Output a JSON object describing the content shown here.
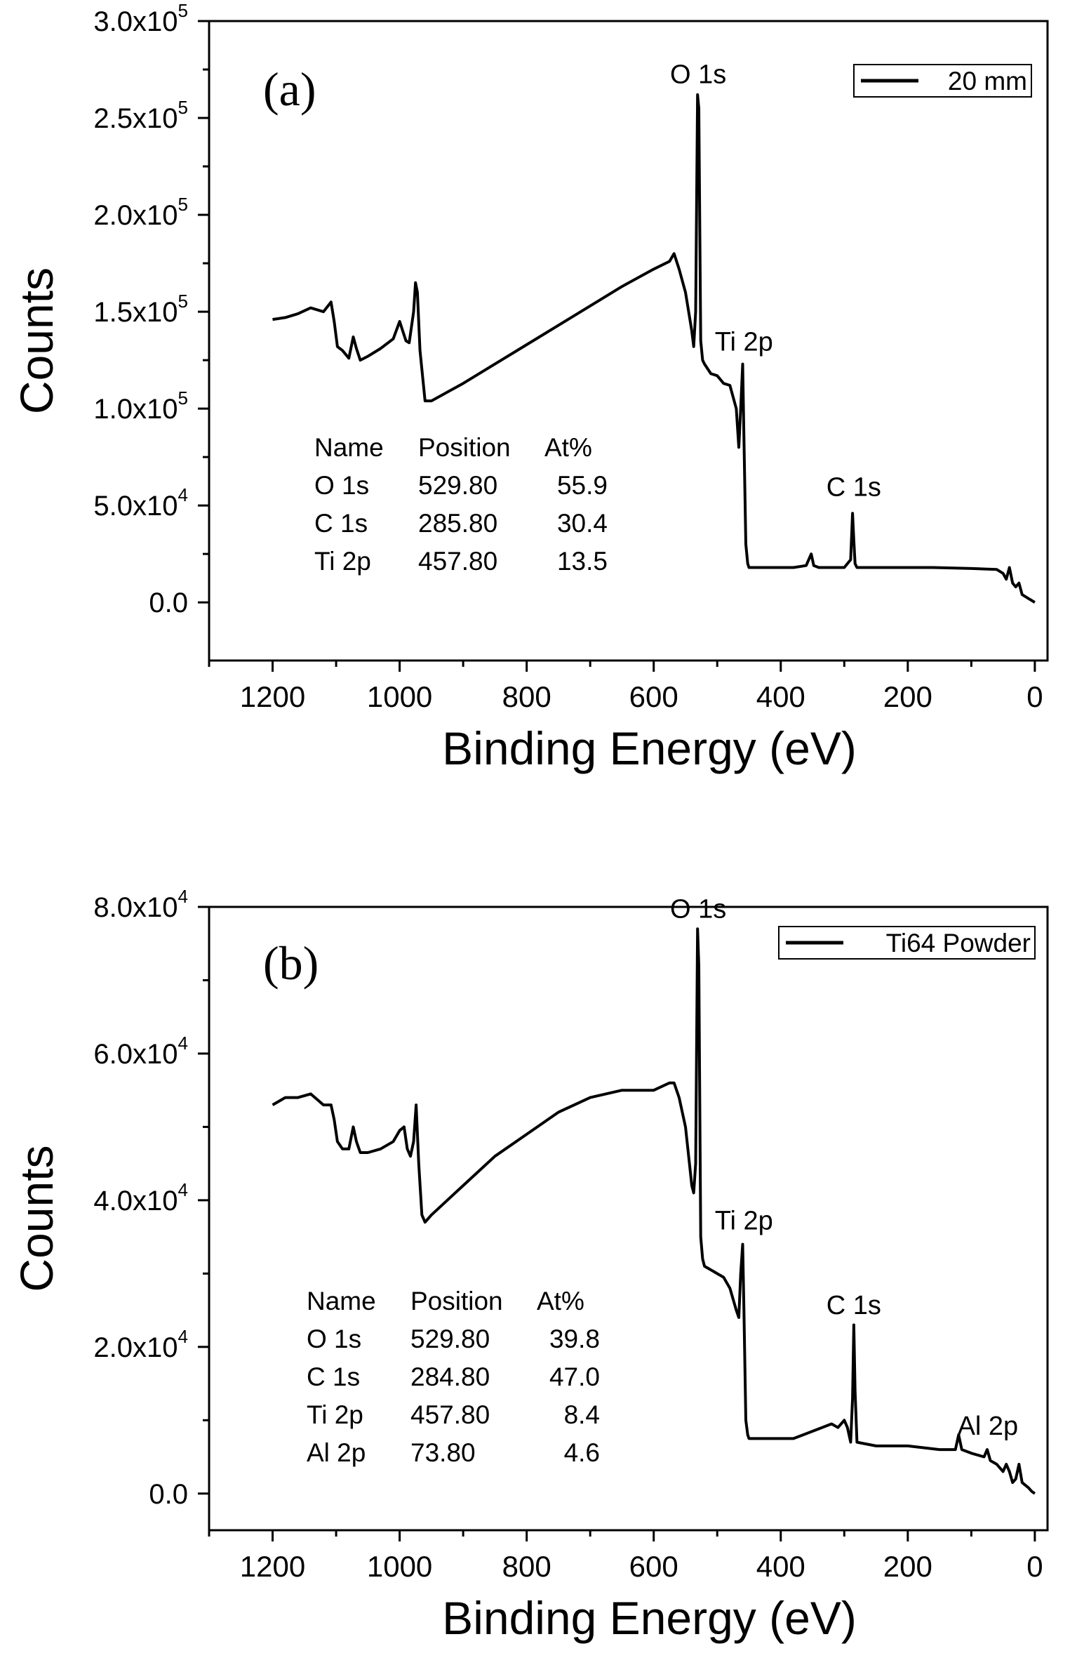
{
  "chart_data": [
    {
      "type": "line",
      "panel_label": "(a)",
      "xlabel": "Binding Energy (eV)",
      "ylabel": "Counts",
      "xlim": [
        1300,
        -20
      ],
      "ylim": [
        -30000,
        300000
      ],
      "x_ticks": [
        1200,
        1000,
        800,
        600,
        400,
        200,
        0
      ],
      "x_tick_labels": [
        "1200",
        "1000",
        "800",
        "600",
        "400",
        "200",
        "0"
      ],
      "y_ticks": [
        {
          "value": 300000,
          "mantissa": "3.0x10",
          "exp": "5"
        },
        {
          "value": 250000,
          "mantissa": "2.5x10",
          "exp": "5"
        },
        {
          "value": 200000,
          "mantissa": "2.0x10",
          "exp": "5"
        },
        {
          "value": 150000,
          "mantissa": "1.5x10",
          "exp": "5"
        },
        {
          "value": 100000,
          "mantissa": "1.0x10",
          "exp": "5"
        },
        {
          "value": 50000,
          "mantissa": "5.0x10",
          "exp": "4"
        },
        {
          "value": 0,
          "mantissa": "0.0",
          "exp": ""
        }
      ],
      "legend": {
        "label": "20 mm",
        "position": "top-right"
      },
      "series": [
        {
          "name": "20 mm",
          "x": [
            1200,
            1180,
            1160,
            1140,
            1120,
            1108,
            1103,
            1098,
            1090,
            1080,
            1073,
            1068,
            1062,
            1050,
            1030,
            1010,
            1000,
            995,
            990,
            985,
            978,
            975,
            972,
            968,
            960,
            950,
            900,
            850,
            800,
            750,
            700,
            650,
            600,
            575,
            568,
            560,
            550,
            545,
            540,
            537,
            534,
            531,
            529,
            526,
            523,
            520,
            510,
            500,
            490,
            480,
            470,
            466,
            463,
            460,
            458,
            455,
            452,
            450,
            440,
            420,
            400,
            380,
            360,
            352,
            348,
            340,
            320,
            300,
            290,
            287,
            285,
            283,
            280,
            250,
            200,
            160,
            100,
            60,
            50,
            45,
            40,
            35,
            30,
            25,
            20,
            10,
            5,
            0
          ],
          "y": [
            146000,
            147000,
            149000,
            152000,
            150000,
            155000,
            145000,
            132000,
            130000,
            126000,
            137000,
            131000,
            125000,
            127000,
            131000,
            136000,
            145000,
            140000,
            135000,
            134000,
            150000,
            165000,
            160000,
            130000,
            104000,
            104000,
            113000,
            123000,
            133000,
            143000,
            153000,
            163000,
            172000,
            176000,
            180000,
            172000,
            160000,
            150000,
            140000,
            132000,
            150000,
            262000,
            255000,
            135000,
            125000,
            123000,
            118000,
            117000,
            113000,
            112000,
            100000,
            80000,
            100000,
            123000,
            85000,
            30000,
            20000,
            18000,
            18000,
            18000,
            18000,
            18000,
            19000,
            25000,
            19000,
            18000,
            18000,
            18000,
            22000,
            46000,
            32000,
            20000,
            18000,
            18000,
            18000,
            18000,
            17500,
            17000,
            15000,
            12000,
            18000,
            10000,
            8000,
            10000,
            4000,
            2000,
            1000,
            0
          ]
        }
      ],
      "annotations": [
        {
          "text": "O 1s",
          "x": 530,
          "y": 268000
        },
        {
          "text": "Ti 2p",
          "x": 458,
          "y": 130000
        },
        {
          "text": "C 1s",
          "x": 285,
          "y": 55000
        }
      ],
      "table": {
        "headers": [
          "Name",
          "Position",
          "At%"
        ],
        "rows": [
          [
            "O 1s",
            "529.80",
            "55.9"
          ],
          [
            "C 1s",
            "285.80",
            "30.4"
          ],
          [
            "Ti 2p",
            "457.80",
            "13.5"
          ]
        ]
      }
    },
    {
      "type": "line",
      "panel_label": "(b)",
      "xlabel": "Binding Energy (eV)",
      "ylabel": "Counts",
      "xlim": [
        1300,
        -20
      ],
      "ylim": [
        -5000,
        80000
      ],
      "x_ticks": [
        1200,
        1000,
        800,
        600,
        400,
        200,
        0
      ],
      "x_tick_labels": [
        "1200",
        "1000",
        "800",
        "600",
        "400",
        "200",
        "0"
      ],
      "y_ticks": [
        {
          "value": 80000,
          "mantissa": "8.0x10",
          "exp": "4"
        },
        {
          "value": 60000,
          "mantissa": "6.0x10",
          "exp": "4"
        },
        {
          "value": 40000,
          "mantissa": "4.0x10",
          "exp": "4"
        },
        {
          "value": 20000,
          "mantissa": "2.0x10",
          "exp": "4"
        },
        {
          "value": 0,
          "mantissa": "0.0",
          "exp": ""
        }
      ],
      "legend": {
        "label": "Ti64 Powder",
        "position": "top-right"
      },
      "series": [
        {
          "name": "Ti64 Powder",
          "x": [
            1200,
            1180,
            1160,
            1140,
            1120,
            1108,
            1103,
            1098,
            1090,
            1080,
            1073,
            1068,
            1062,
            1050,
            1030,
            1010,
            1000,
            993,
            988,
            983,
            978,
            974,
            970,
            965,
            960,
            950,
            900,
            850,
            800,
            750,
            700,
            650,
            600,
            575,
            568,
            560,
            550,
            545,
            540,
            537,
            534,
            531,
            529,
            526,
            523,
            520,
            510,
            500,
            490,
            480,
            470,
            466,
            463,
            460,
            458,
            455,
            452,
            450,
            440,
            420,
            400,
            380,
            350,
            320,
            310,
            300,
            295,
            290,
            287,
            285,
            283,
            280,
            250,
            200,
            150,
            125,
            120,
            115,
            100,
            80,
            75,
            70,
            60,
            50,
            45,
            40,
            35,
            30,
            25,
            20,
            10,
            5,
            0
          ],
          "y": [
            53000,
            54000,
            54000,
            54500,
            53000,
            53000,
            51000,
            48000,
            47000,
            47000,
            50000,
            48000,
            46500,
            46500,
            47000,
            48000,
            49500,
            50000,
            47000,
            46000,
            48000,
            53000,
            45000,
            38000,
            37000,
            38000,
            42000,
            46000,
            49000,
            52000,
            54000,
            55000,
            55000,
            56000,
            56000,
            54000,
            50000,
            46000,
            42000,
            41000,
            45000,
            77000,
            72000,
            35000,
            32000,
            31000,
            30500,
            30000,
            29500,
            28000,
            25000,
            24000,
            30000,
            34000,
            25000,
            10000,
            8000,
            7500,
            7500,
            7500,
            7500,
            7500,
            8500,
            9500,
            9000,
            10000,
            9000,
            7000,
            13000,
            23000,
            14000,
            7000,
            6500,
            6500,
            6000,
            6000,
            8000,
            6000,
            5500,
            5000,
            6000,
            4500,
            4000,
            3000,
            4000,
            3000,
            1500,
            2000,
            4000,
            1500,
            800,
            300,
            0
          ]
        }
      ],
      "annotations": [
        {
          "text": "O 1s",
          "x": 530,
          "y": 78500
        },
        {
          "text": "Ti 2p",
          "x": 458,
          "y": 36000
        },
        {
          "text": "C 1s",
          "x": 285,
          "y": 24500
        },
        {
          "text": "Al 2p",
          "x": 74,
          "y": 8000
        }
      ],
      "table": {
        "headers": [
          "Name",
          "Position",
          "At%"
        ],
        "rows": [
          [
            "O 1s",
            "529.80",
            "39.8"
          ],
          [
            "C 1s",
            "284.80",
            "47.0"
          ],
          [
            "Ti 2p",
            "457.80",
            "8.4"
          ],
          [
            "Al 2p",
            "73.80",
            "4.6"
          ]
        ]
      }
    }
  ]
}
